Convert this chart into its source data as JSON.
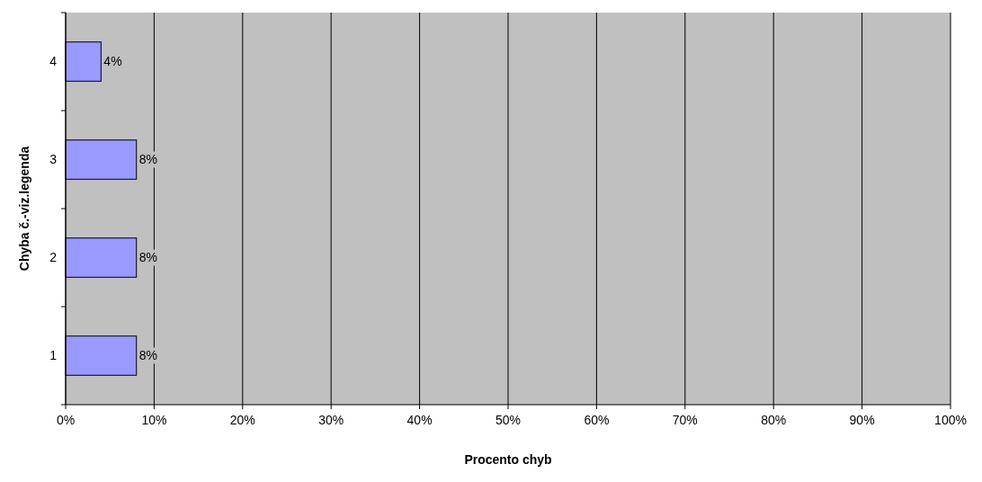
{
  "chart_data": {
    "type": "bar",
    "orientation": "horizontal",
    "xlabel": "Procento chyb",
    "ylabel": "Chyba č.-viz.legenda",
    "categories": [
      "4",
      "3",
      "2",
      "1"
    ],
    "values": [
      4,
      8,
      8,
      8
    ],
    "color": "#9999ff",
    "value_labels": [
      "4%",
      "8%",
      "8%",
      "8%"
    ],
    "xlim": [
      0,
      100
    ],
    "xticks": [
      {
        "value": 0,
        "label": "0%"
      },
      {
        "value": 10,
        "label": "10%"
      },
      {
        "value": 20,
        "label": "20%"
      },
      {
        "value": 30,
        "label": "30%"
      },
      {
        "value": 40,
        "label": "40%"
      },
      {
        "value": 50,
        "label": "50%"
      },
      {
        "value": 60,
        "label": "60%"
      },
      {
        "value": 70,
        "label": "70%"
      },
      {
        "value": 80,
        "label": "80%"
      },
      {
        "value": 90,
        "label": "90%"
      },
      {
        "value": 100,
        "label": "100%"
      }
    ],
    "grid": "x"
  }
}
